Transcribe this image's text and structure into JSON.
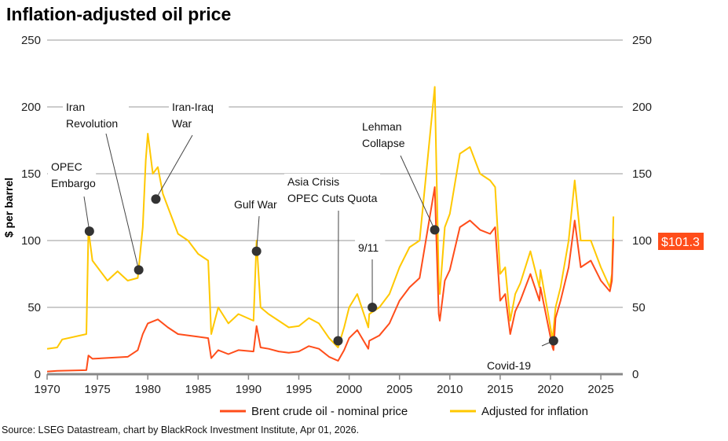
{
  "chart_data": {
    "type": "line",
    "title": "Inflation-adjusted oil price",
    "ylabel": "$ per barrel",
    "xlim": [
      1970,
      2026.5
    ],
    "ylim": [
      0,
      250
    ],
    "x_ticks": [
      1970,
      1975,
      1980,
      1985,
      1990,
      1995,
      2000,
      2005,
      2010,
      2015,
      2020,
      2025
    ],
    "y_ticks": [
      0,
      50,
      100,
      150,
      200,
      250
    ],
    "grid": true,
    "legend_position": "bottom",
    "latest_label": "$101.3",
    "latest_value": 101.3,
    "colors": {
      "nominal": "#ff4d1a",
      "adjusted": "#ffc800",
      "grid": "#999999"
    },
    "series": [
      {
        "name": "Brent crude oil - nominal price",
        "color": "#ff4d1a",
        "x": [
          1970,
          1971,
          1973.9,
          1974.1,
          1974.5,
          1978,
          1979,
          1979.5,
          1980,
          1981,
          1982,
          1983,
          1985,
          1986,
          1986.3,
          1987,
          1988,
          1989,
          1990.5,
          1990.8,
          1991.2,
          1992,
          1993,
          1994,
          1995,
          1996,
          1997,
          1998,
          1998.9,
          1999.5,
          2000,
          2000.8,
          2001.9,
          2002,
          2003,
          2004,
          2005,
          2006,
          2007,
          2008.5,
          2008.9,
          2009,
          2009.5,
          2010,
          2011,
          2012,
          2013,
          2014,
          2014.5,
          2015,
          2015.5,
          2016,
          2016.5,
          2017,
          2018,
          2018.9,
          2019,
          2020.2,
          2020.3,
          2020.5,
          2021,
          2021.8,
          2022.4,
          2023,
          2024,
          2025,
          2025.9,
          2026.1,
          2026.25
        ],
        "y": [
          2,
          2.5,
          3,
          14,
          11.5,
          13,
          18,
          30,
          38,
          41,
          35,
          30,
          28,
          27,
          12,
          18,
          15,
          18,
          17,
          36,
          20,
          19,
          17,
          16,
          17,
          21,
          19,
          13,
          10,
          18,
          27,
          33,
          19,
          25,
          29,
          38,
          55,
          65,
          72,
          140,
          45,
          40,
          70,
          78,
          110,
          115,
          108,
          105,
          110,
          55,
          60,
          30,
          47,
          55,
          75,
          55,
          65,
          20,
          18,
          42,
          55,
          80,
          115,
          80,
          85,
          70,
          62,
          70,
          101.3
        ]
      },
      {
        "name": "Adjusted for inflation",
        "color": "#ffc800",
        "x": [
          1970,
          1971,
          1971.5,
          1973.9,
          1974.1,
          1974.5,
          1975,
          1976,
          1977,
          1978,
          1979,
          1979.5,
          1979.8,
          1980,
          1980.5,
          1981,
          1981.5,
          1982,
          1983,
          1984,
          1985,
          1986,
          1986.3,
          1987,
          1988,
          1989,
          1990.5,
          1990.8,
          1991.2,
          1992,
          1993,
          1994,
          1995,
          1996,
          1997,
          1998,
          1998.9,
          1999.5,
          2000,
          2000.8,
          2001.9,
          2002,
          2003,
          2004,
          2005,
          2006,
          2007,
          2008.5,
          2008.9,
          2009,
          2009.5,
          2010,
          2011,
          2012,
          2013,
          2014,
          2014.5,
          2015,
          2015.5,
          2016,
          2016.5,
          2017,
          2018,
          2018.9,
          2019,
          2020.2,
          2020.5,
          2021,
          2021.8,
          2022.4,
          2023,
          2024,
          2025,
          2025.9,
          2026.1,
          2026.25
        ],
        "y": [
          19,
          20,
          26,
          30,
          108,
          85,
          80,
          70,
          77,
          70,
          72,
          110,
          160,
          180,
          150,
          155,
          135,
          125,
          105,
          100,
          90,
          85,
          30,
          50,
          38,
          45,
          40,
          100,
          50,
          45,
          40,
          35,
          36,
          42,
          38,
          27,
          20,
          35,
          50,
          60,
          35,
          45,
          50,
          60,
          80,
          95,
          100,
          215,
          70,
          60,
          110,
          120,
          165,
          170,
          150,
          145,
          140,
          75,
          80,
          40,
          60,
          68,
          92,
          65,
          78,
          26,
          50,
          65,
          100,
          145,
          100,
          100,
          80,
          65,
          75,
          118
        ]
      }
    ],
    "annotations": [
      {
        "text": [
          "OPEC",
          "Embargo"
        ],
        "x": 1974.2,
        "y": 107
      },
      {
        "text": [
          "Iran",
          "Revolution"
        ],
        "x": 1979.1,
        "y": 78
      },
      {
        "text": [
          "Iran-Iraq",
          "War"
        ],
        "x": 1980.8,
        "y": 131
      },
      {
        "text": [
          "Gulf War"
        ],
        "x": 1990.8,
        "y": 92
      },
      {
        "text": [
          "Asia Crisis",
          "OPEC Cuts Quota"
        ],
        "x": 1998.9,
        "y": 25
      },
      {
        "text": [
          "9/11"
        ],
        "x": 2002.3,
        "y": 50
      },
      {
        "text": [
          "Lehman",
          "Collapse"
        ],
        "x": 2008.5,
        "y": 108
      },
      {
        "text": [
          "Covid-19"
        ],
        "x": 2020.3,
        "y": 25
      }
    ]
  },
  "source": "Source: LSEG Datastream, chart by BlackRock Investment Institute, Apr 01, 2026."
}
